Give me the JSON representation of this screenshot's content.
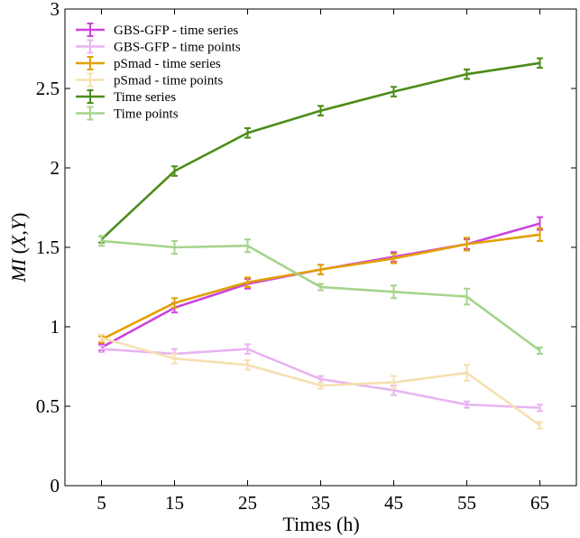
{
  "chart_data": {
    "type": "line",
    "title": "",
    "xlabel": "Times (h)",
    "ylabel_parts": {
      "mi": "MI",
      "open": " (",
      "x": "X",
      "comma": ",",
      "y": "Y",
      "close": ")"
    },
    "ylabel": "MI (X,Y)",
    "x": [
      5,
      15,
      25,
      35,
      45,
      55,
      65
    ],
    "x_ticks": [
      "5",
      "15",
      "25",
      "35",
      "45",
      "55",
      "65"
    ],
    "xlim": [
      0,
      70
    ],
    "ylim": [
      0,
      3
    ],
    "y_ticks": [
      "0",
      "0.5",
      "1",
      "1.5",
      "2",
      "2.5",
      "3"
    ],
    "y_tick_values": [
      0,
      0.5,
      1,
      1.5,
      2,
      2.5,
      3
    ],
    "legend_position": "top-left",
    "series": [
      {
        "name": "GBS-GFP - time series",
        "color": "#cc44dd",
        "values": [
          0.87,
          1.12,
          1.27,
          1.36,
          1.44,
          1.52,
          1.65
        ],
        "errors": [
          0.02,
          0.03,
          0.03,
          0.03,
          0.03,
          0.03,
          0.04
        ]
      },
      {
        "name": "GBS-GFP - time points",
        "color": "#e8b4f2",
        "values": [
          0.86,
          0.83,
          0.86,
          0.67,
          0.6,
          0.51,
          0.49
        ],
        "errors": [
          0.02,
          0.03,
          0.03,
          0.02,
          0.03,
          0.02,
          0.02
        ]
      },
      {
        "name": "pSmad - time series",
        "color": "#e0a000",
        "values": [
          0.92,
          1.15,
          1.28,
          1.36,
          1.43,
          1.52,
          1.58
        ],
        "errors": [
          0.02,
          0.03,
          0.03,
          0.03,
          0.03,
          0.04,
          0.04
        ]
      },
      {
        "name": "pSmad - time points",
        "color": "#f5e0b0",
        "values": [
          0.93,
          0.8,
          0.76,
          0.63,
          0.65,
          0.71,
          0.38
        ],
        "errors": [
          0.02,
          0.03,
          0.03,
          0.02,
          0.04,
          0.05,
          0.02
        ]
      },
      {
        "name": "Time series",
        "color": "#4c8c18",
        "values": [
          1.55,
          1.98,
          2.22,
          2.36,
          2.48,
          2.59,
          2.66
        ],
        "errors": [
          0.02,
          0.03,
          0.03,
          0.03,
          0.03,
          0.03,
          0.03
        ]
      },
      {
        "name": "Time points",
        "color": "#a4d48c",
        "values": [
          1.54,
          1.5,
          1.51,
          1.25,
          1.22,
          1.19,
          0.85
        ],
        "errors": [
          0.03,
          0.04,
          0.04,
          0.02,
          0.04,
          0.05,
          0.02
        ]
      }
    ]
  }
}
